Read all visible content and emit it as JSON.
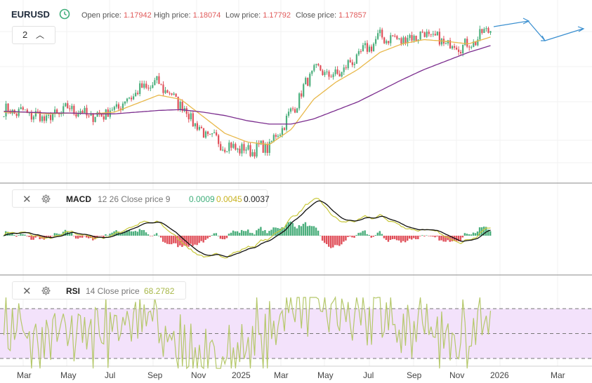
{
  "header": {
    "symbol": "EURUSD",
    "open_label": "Open price:",
    "open_value": "1.17942",
    "high_label": "High price:",
    "high_value": "1.18074",
    "low_label": "Low price:",
    "low_value": "1.17792",
    "close_label": "Close price:",
    "close_value": "1.17857",
    "collapse_count": "2"
  },
  "macd_panel": {
    "name": "MACD",
    "params": "12 26 Close price 9",
    "v1": "0.0009",
    "v2": "0.0045",
    "v3": "0.0037"
  },
  "rsi_panel": {
    "name": "RSI",
    "params": "14 Close price",
    "value": "68.2782"
  },
  "x_axis_labels": [
    "Mar",
    "May",
    "Jul",
    "Sep",
    "Nov",
    "2025",
    "Mar",
    "May",
    "Jul",
    "Sep",
    "Nov",
    "2026",
    "Mar"
  ],
  "colors": {
    "up": "#4caf7d",
    "down": "#e0505a",
    "ma_short": "#e8b84a",
    "ma_long": "#7b2d8e",
    "macd_line": "#111111",
    "signal_line": "#c8c83a",
    "rsi": "#b5c86a",
    "rsi_band": "#f3e2fb",
    "forecast": "#3a8fd0"
  },
  "chart_data": [
    {
      "type": "candlestick",
      "title": "EURUSD",
      "x": [
        "2024-02",
        "2024-03",
        "2024-04",
        "2024-05",
        "2024-06",
        "2024-07",
        "2024-08",
        "2024-09",
        "2024-10",
        "2024-11",
        "2024-12",
        "2025-01",
        "2025-02",
        "2025-03",
        "2025-04",
        "2025-05",
        "2025-06",
        "2025-07",
        "2025-08",
        "2025-09",
        "2025-10",
        "2025-11",
        "2025-12"
      ],
      "close_approx": [
        1.082,
        1.079,
        1.072,
        1.085,
        1.074,
        1.083,
        1.104,
        1.114,
        1.089,
        1.055,
        1.041,
        1.035,
        1.04,
        1.08,
        1.13,
        1.122,
        1.145,
        1.168,
        1.165,
        1.172,
        1.16,
        1.158,
        1.179
      ],
      "series": [
        {
          "name": "MA short",
          "values": [
            1.08,
            1.08,
            1.078,
            1.079,
            1.078,
            1.08,
            1.09,
            1.1,
            1.095,
            1.075,
            1.055,
            1.045,
            1.042,
            1.06,
            1.095,
            1.115,
            1.13,
            1.15,
            1.16,
            1.165,
            1.163,
            1.16,
            1.168
          ]
        },
        {
          "name": "MA long",
          "values": [
            1.081,
            1.08,
            1.079,
            1.079,
            1.078,
            1.078,
            1.08,
            1.082,
            1.083,
            1.08,
            1.076,
            1.07,
            1.066,
            1.066,
            1.072,
            1.082,
            1.092,
            1.105,
            1.118,
            1.13,
            1.14,
            1.15,
            1.158
          ]
        }
      ],
      "last_ohlc": {
        "open": 1.17942,
        "high": 1.18074,
        "low": 1.17792,
        "close": 1.17857
      },
      "forecast": [
        "up",
        "down",
        "up"
      ]
    },
    {
      "type": "line",
      "title": "MACD",
      "params": "12 26 Close price 9",
      "series": [
        {
          "name": "MACD",
          "last": 0.0045
        },
        {
          "name": "Signal",
          "last": 0.0037
        },
        {
          "name": "Histogram",
          "last": 0.0009
        }
      ]
    },
    {
      "type": "line",
      "title": "RSI",
      "params": "14 Close price",
      "series": [
        {
          "name": "RSI",
          "last": 68.2782
        }
      ],
      "ylim": [
        20,
        80
      ],
      "bands": [
        30,
        50,
        70
      ]
    }
  ]
}
